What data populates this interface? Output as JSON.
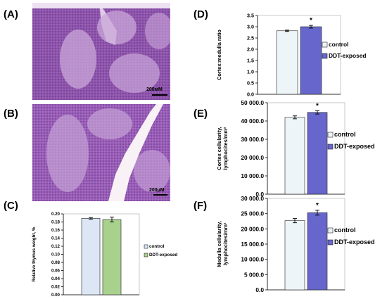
{
  "panels": {
    "a": {
      "label": "(A)",
      "scale_text": "200мM"
    },
    "b": {
      "label": "(B)",
      "scale_text": "200µM"
    },
    "c": {
      "label": "(C)"
    },
    "d": {
      "label": "(D)"
    },
    "e": {
      "label": "(E)"
    },
    "f": {
      "label": "(F)"
    }
  },
  "colors": {
    "tissue_purple": "#9b64b8",
    "tissue_light": "#c9a7d8",
    "background_pale": "#ede1f1",
    "vessel_white": "#f8f2f7",
    "scalebar": "#000000"
  },
  "chart_data": [
    {
      "id": "c",
      "type": "bar",
      "categories": [
        "control",
        "DDT-exposed"
      ],
      "values": [
        0.189,
        0.186
      ],
      "errors": [
        0.002,
        0.006
      ],
      "significance": [
        "",
        ""
      ],
      "ylabel": "Relative thymus weight, %",
      "ylim": [
        0.0,
        0.2
      ],
      "yticks": [
        "0.00",
        "0.02",
        "0.04",
        "0.06",
        "0.08",
        "0.10",
        "0.12",
        "0.14",
        "0.16",
        "0.18",
        "0.20"
      ],
      "colors": [
        "#dce6f4",
        "#a9d18e"
      ],
      "legend": [
        "control",
        "DDT-exposed"
      ],
      "legend_position": "right"
    },
    {
      "id": "d",
      "type": "bar",
      "categories": [
        "control",
        "DDT-exposed"
      ],
      "values": [
        2.82,
        3.0
      ],
      "errors": [
        0.03,
        0.06
      ],
      "significance": [
        "",
        "*"
      ],
      "ylabel": "Cortex:medulla ratio",
      "ylim": [
        0.0,
        3.5
      ],
      "yticks": [
        "0.0",
        "0.5",
        "1.0",
        "1.5",
        "2.0",
        "2.5",
        "3.0",
        "3.5"
      ],
      "colors": [
        "#eef5f9",
        "#6666cc"
      ],
      "legend": [
        "control",
        "DDT-exposed"
      ],
      "legend_position": "right"
    },
    {
      "id": "e",
      "type": "bar",
      "categories": [
        "control",
        "DDT-exposed"
      ],
      "values": [
        42000,
        44700
      ],
      "errors": [
        800,
        900
      ],
      "significance": [
        "",
        "*"
      ],
      "ylabel": "Cortex cellularity, lymphocites/mm²",
      "ylim": [
        0,
        50000
      ],
      "yticks": [
        "0.0",
        "10 000.0",
        "20 000.0",
        "30 000.0",
        "40 000.0",
        "50 000.0"
      ],
      "colors": [
        "#eef5f9",
        "#6666cc"
      ],
      "legend": [
        "control",
        "DDT-exposed"
      ],
      "legend_position": "right"
    },
    {
      "id": "f",
      "type": "bar",
      "categories": [
        "control",
        "DDT-exposed"
      ],
      "values": [
        22700,
        25300
      ],
      "errors": [
        700,
        800
      ],
      "significance": [
        "",
        "*"
      ],
      "ylabel": "Medulla cellularity, lymphocites/mm²",
      "ylim": [
        0,
        30000
      ],
      "yticks": [
        "0.0",
        "5 000.0",
        "10 000.0",
        "15 000.0",
        "20 000.0",
        "25 000.0",
        "30 000.0"
      ],
      "colors": [
        "#eef5f9",
        "#6666cc"
      ],
      "legend": [
        "control",
        "DDT-exposed"
      ],
      "legend_position": "right"
    }
  ]
}
